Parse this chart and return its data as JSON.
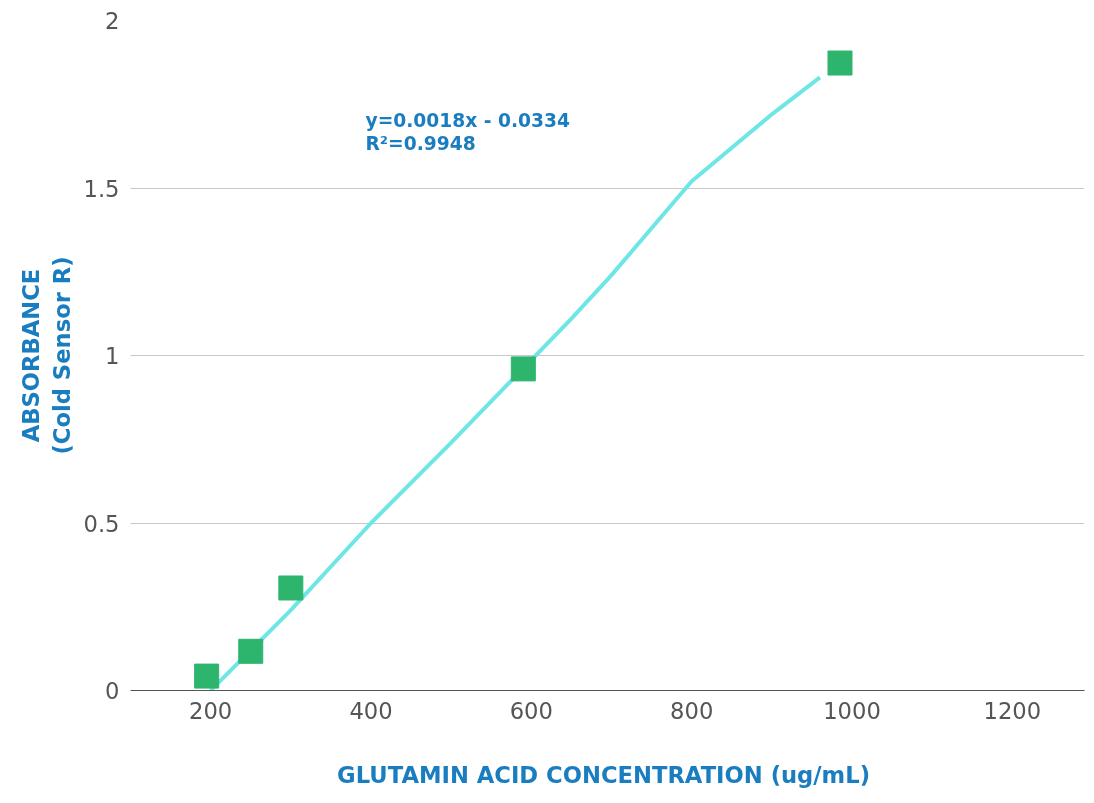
{
  "chart_data": {
    "type": "scatter",
    "xlabel": "GLUTAMIN ACID CONCENTRATION  (ug/mL)",
    "ylabel": "ABSORBANCE\n(Cold Sensor R)",
    "series": [
      {
        "type": "line",
        "color": "#6ee6e6",
        "x": [
          200,
          300,
          400,
          500,
          650,
          700,
          800,
          900,
          960
        ],
        "values": [
          0,
          0.24,
          0.5,
          0.74,
          1.11,
          1.24,
          1.52,
          1.72,
          1.83
        ]
      },
      {
        "color": "#2db56e",
        "marker": "square",
        "x": [
          195,
          250,
          300,
          590,
          985
        ],
        "values": [
          0.043,
          0.117,
          0.306,
          0.96,
          1.873
        ]
      }
    ],
    "grid": "y",
    "xlim": [
      100,
      1290
    ],
    "xticks": [
      200,
      400,
      600,
      800,
      1000,
      1200
    ],
    "ylim": [
      0,
      2
    ],
    "yticks": [
      0,
      0.5,
      1,
      1.5,
      2
    ],
    "annotations": [
      "y=0.0018x - 0.0334",
      "R²=0.9948"
    ]
  }
}
